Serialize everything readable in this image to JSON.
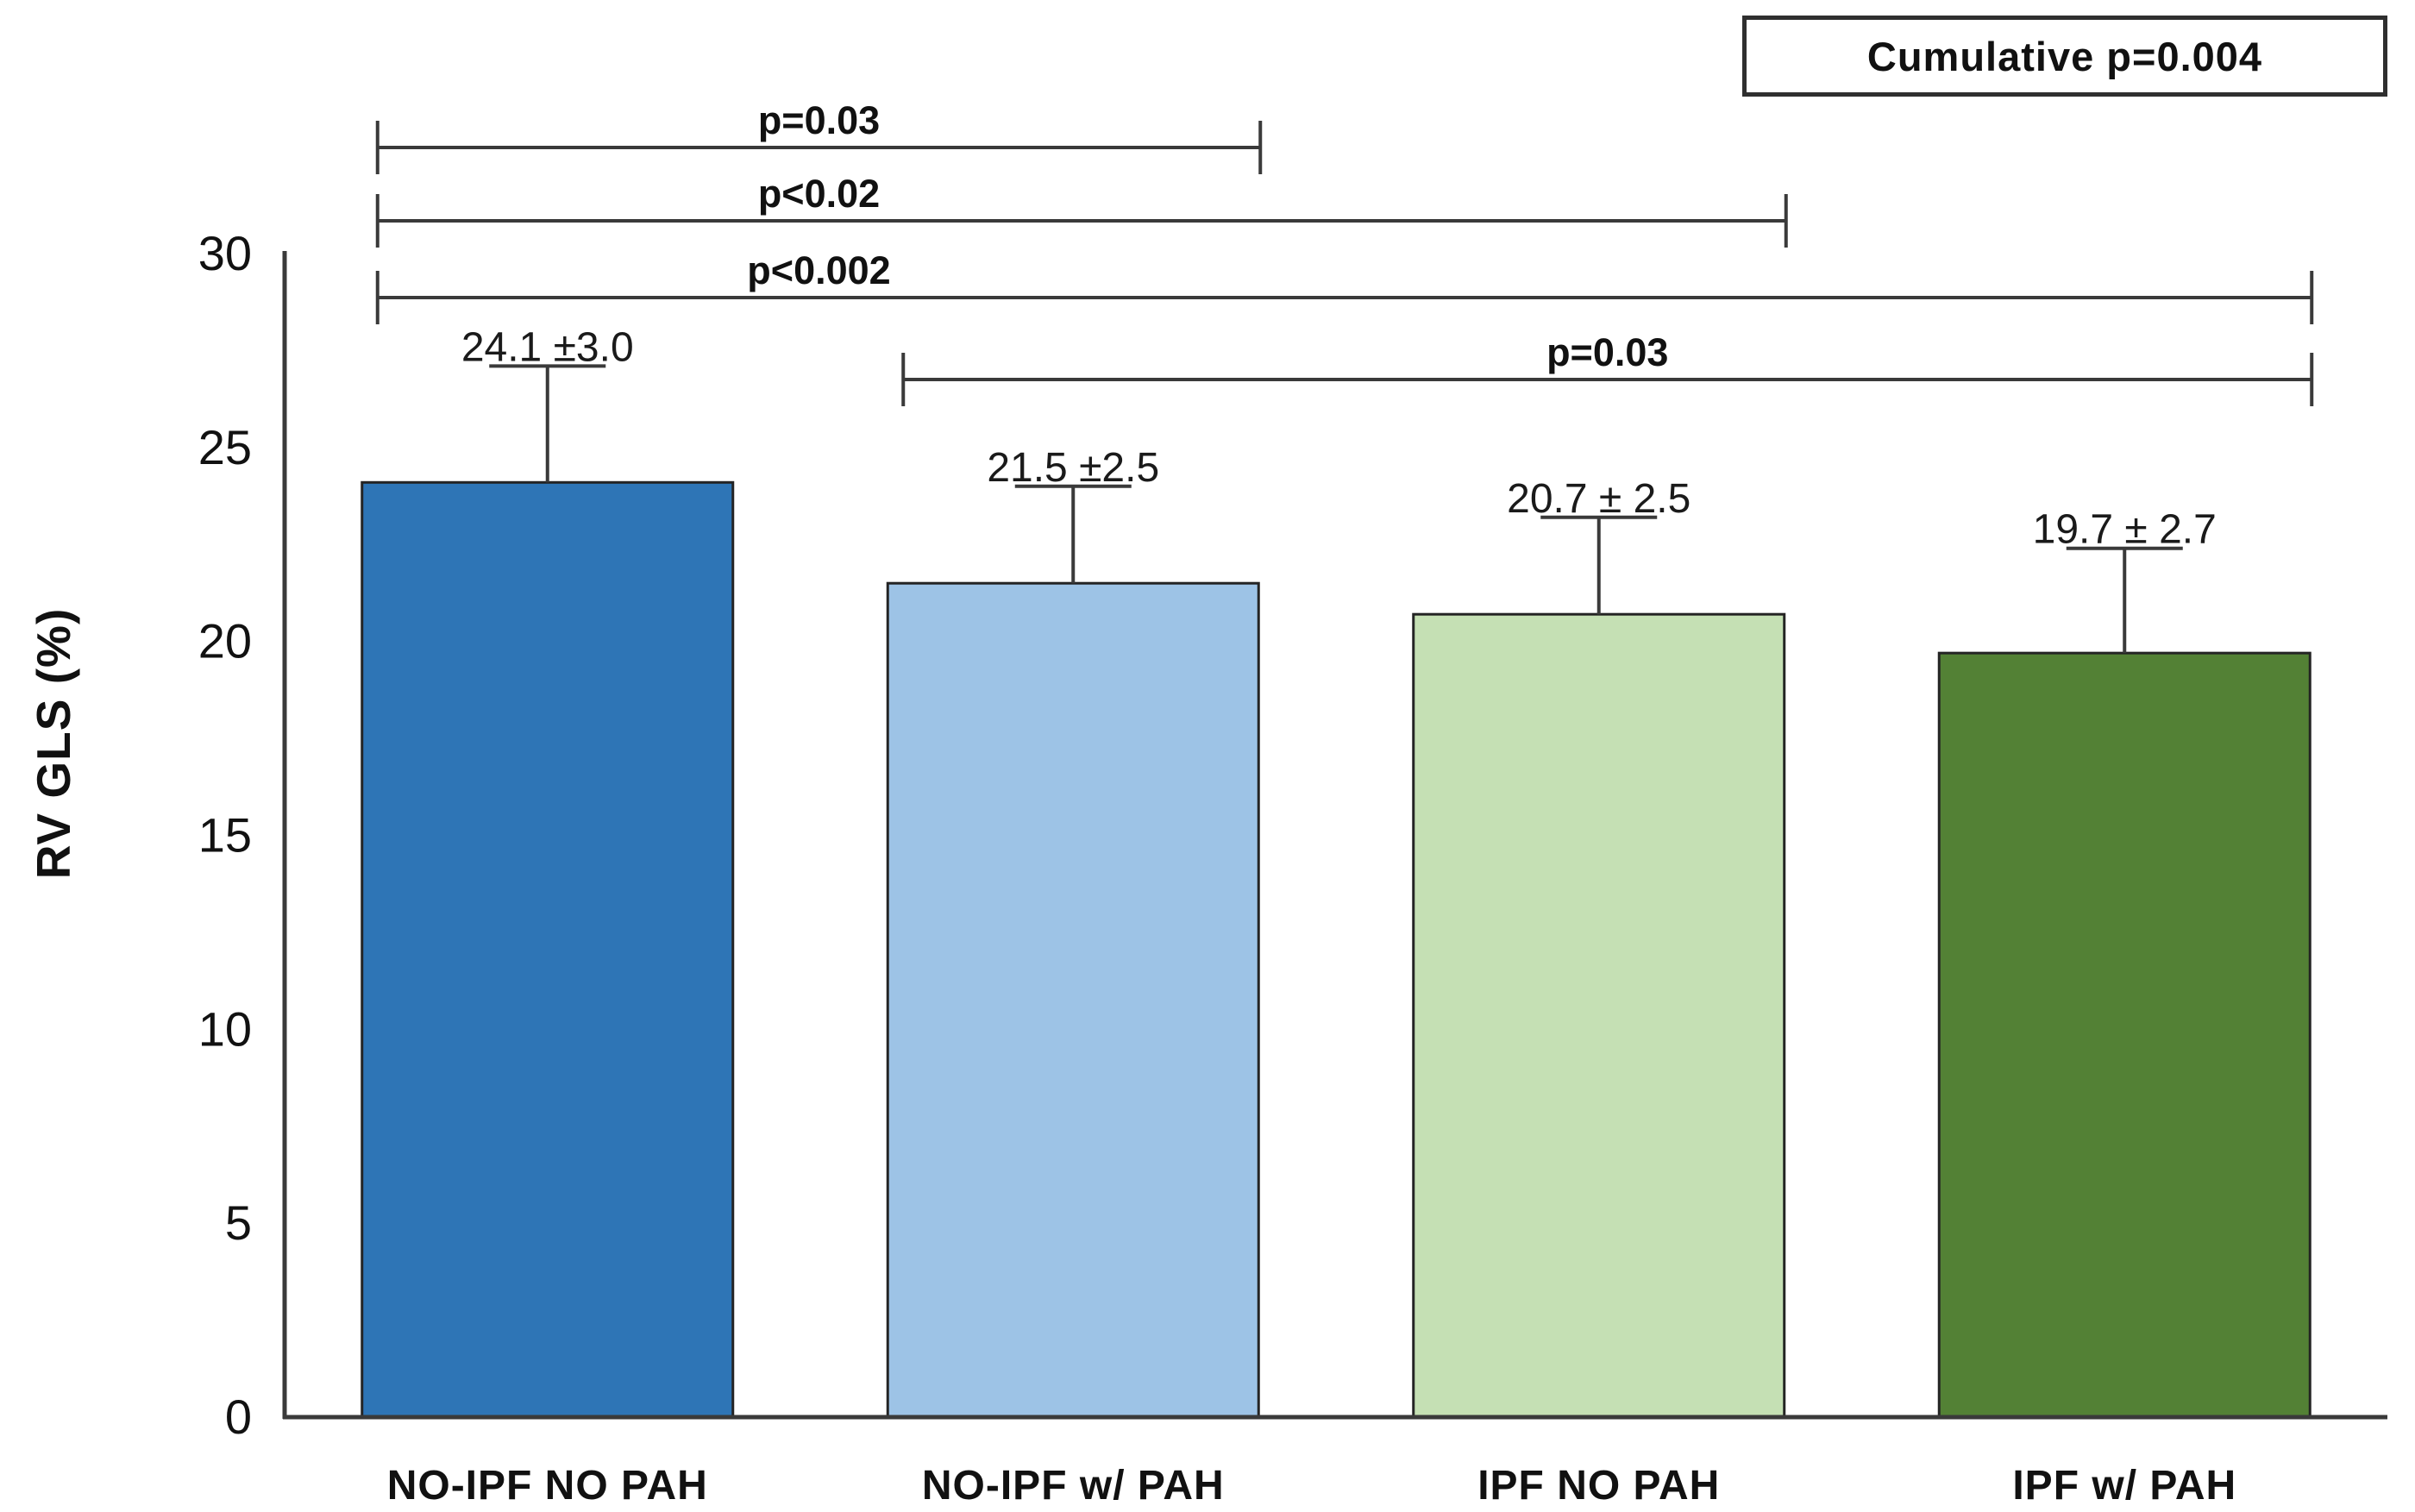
{
  "chart_data": {
    "type": "bar",
    "title": "",
    "xlabel": "",
    "ylabel": "RV GLS (%)",
    "ylim": [
      0,
      30
    ],
    "yticks": [
      0,
      5,
      10,
      15,
      20,
      25,
      30
    ],
    "grid": false,
    "legend": "none",
    "categories": [
      "NO-IPF NO PAH",
      "NO-IPF w/ PAH",
      "IPF NO PAH",
      "IPF w/ PAH"
    ],
    "series": [
      {
        "name": "RV GLS (%)",
        "values": [
          24.1,
          21.5,
          20.7,
          19.7
        ],
        "errors_plus": [
          3.0,
          2.5,
          2.5,
          2.7
        ]
      }
    ],
    "value_labels": [
      "24.1 ±3.0",
      "21.5 ±2.5",
      "20.7 ± 2.5",
      "19.7 ± 2.7"
    ],
    "bar_colors": [
      "#2e75b6",
      "#9dc3e6",
      "#c5e0b4",
      "#538135"
    ],
    "bar_border_color": "#242424",
    "axis_color": "#3a3a3a",
    "error_bar_color": "#3a3a3a",
    "significance_brackets": [
      {
        "label": "p=0.03",
        "from": 0,
        "to": 1,
        "label_align": "first-bracket-center"
      },
      {
        "label": "p<0.02",
        "from": 0,
        "to": 2,
        "label_align": "first-bracket-center"
      },
      {
        "label": "p<0.002",
        "from": 0,
        "to": 3,
        "label_align": "first-bracket-center"
      },
      {
        "label": "p=0.03",
        "from": 1,
        "to": 3,
        "label_align": "center"
      }
    ],
    "annotation_box": {
      "text": "Cumulative p=0.004"
    }
  }
}
